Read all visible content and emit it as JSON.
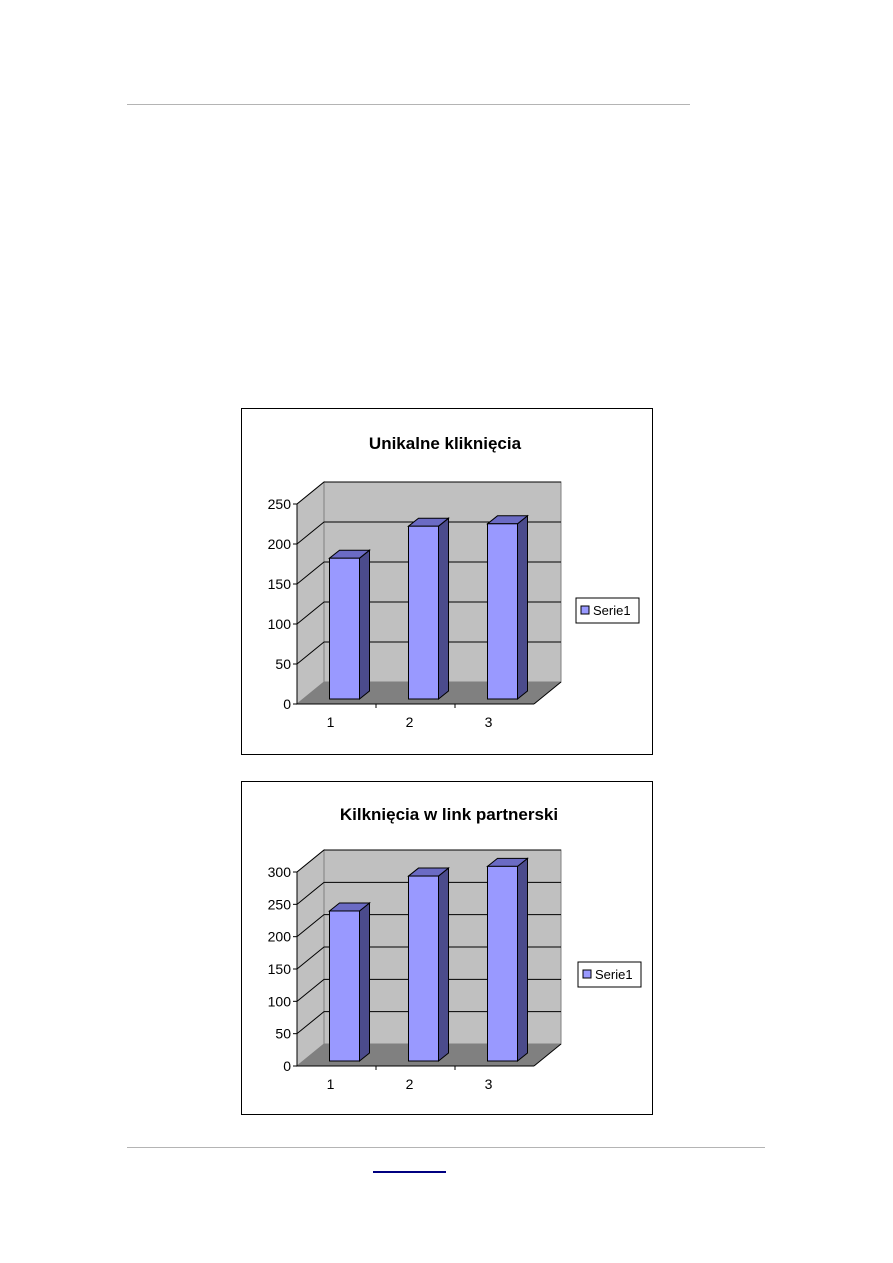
{
  "chart_data": [
    {
      "type": "bar",
      "style": "3d-column",
      "title": "Unikalne kliknięcia",
      "categories": [
        "1",
        "2",
        "3"
      ],
      "series": [
        {
          "name": "Serie1",
          "values": [
            176,
            216,
            219
          ]
        }
      ],
      "yticks": [
        "0",
        "50",
        "100",
        "150",
        "200",
        "250"
      ],
      "ylim": [
        0,
        250
      ],
      "grid": true,
      "legend": "right",
      "colors": {
        "bar": "#9999ff",
        "bar_side": "#4b4b8c",
        "wall": "#c0c0c0",
        "floor": "#808080"
      }
    },
    {
      "type": "bar",
      "style": "3d-column",
      "title": "Kilknięcia w link partnerski",
      "categories": [
        "1",
        "2",
        "3"
      ],
      "series": [
        {
          "name": "Serie1",
          "values": [
            232,
            286,
            301
          ]
        }
      ],
      "yticks": [
        "0",
        "50",
        "100",
        "150",
        "200",
        "250",
        "300"
      ],
      "ylim": [
        0,
        300
      ],
      "grid": true,
      "legend": "right",
      "colors": {
        "bar": "#9999ff",
        "bar_side": "#4b4b8c",
        "wall": "#c0c0c0",
        "floor": "#808080"
      }
    }
  ],
  "footer": {
    "link_color": "#000080"
  }
}
